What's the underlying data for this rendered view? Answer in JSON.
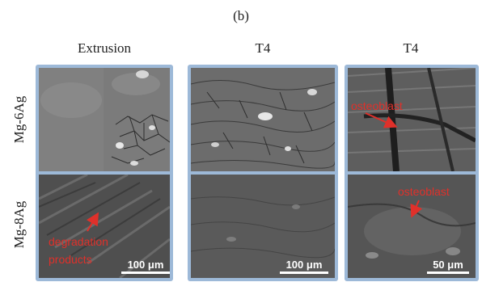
{
  "figure": {
    "panel_label": "(b)",
    "columns": [
      "Extrusion",
      "T4",
      "T4"
    ],
    "rows": [
      "Mg-6Ag",
      "Mg-8Ag"
    ],
    "annotations": {
      "osteoblast_top": "osteoblast",
      "osteoblast_bottom": "osteoblast",
      "degradation_line1": "degradation",
      "degradation_line2": "products"
    },
    "scalebars": [
      "100 μm",
      "100 μm",
      "50 μm"
    ],
    "colors": {
      "frame": "#9db9d8",
      "annotation": "#e0302a",
      "scalebar": "#ffffff"
    }
  }
}
